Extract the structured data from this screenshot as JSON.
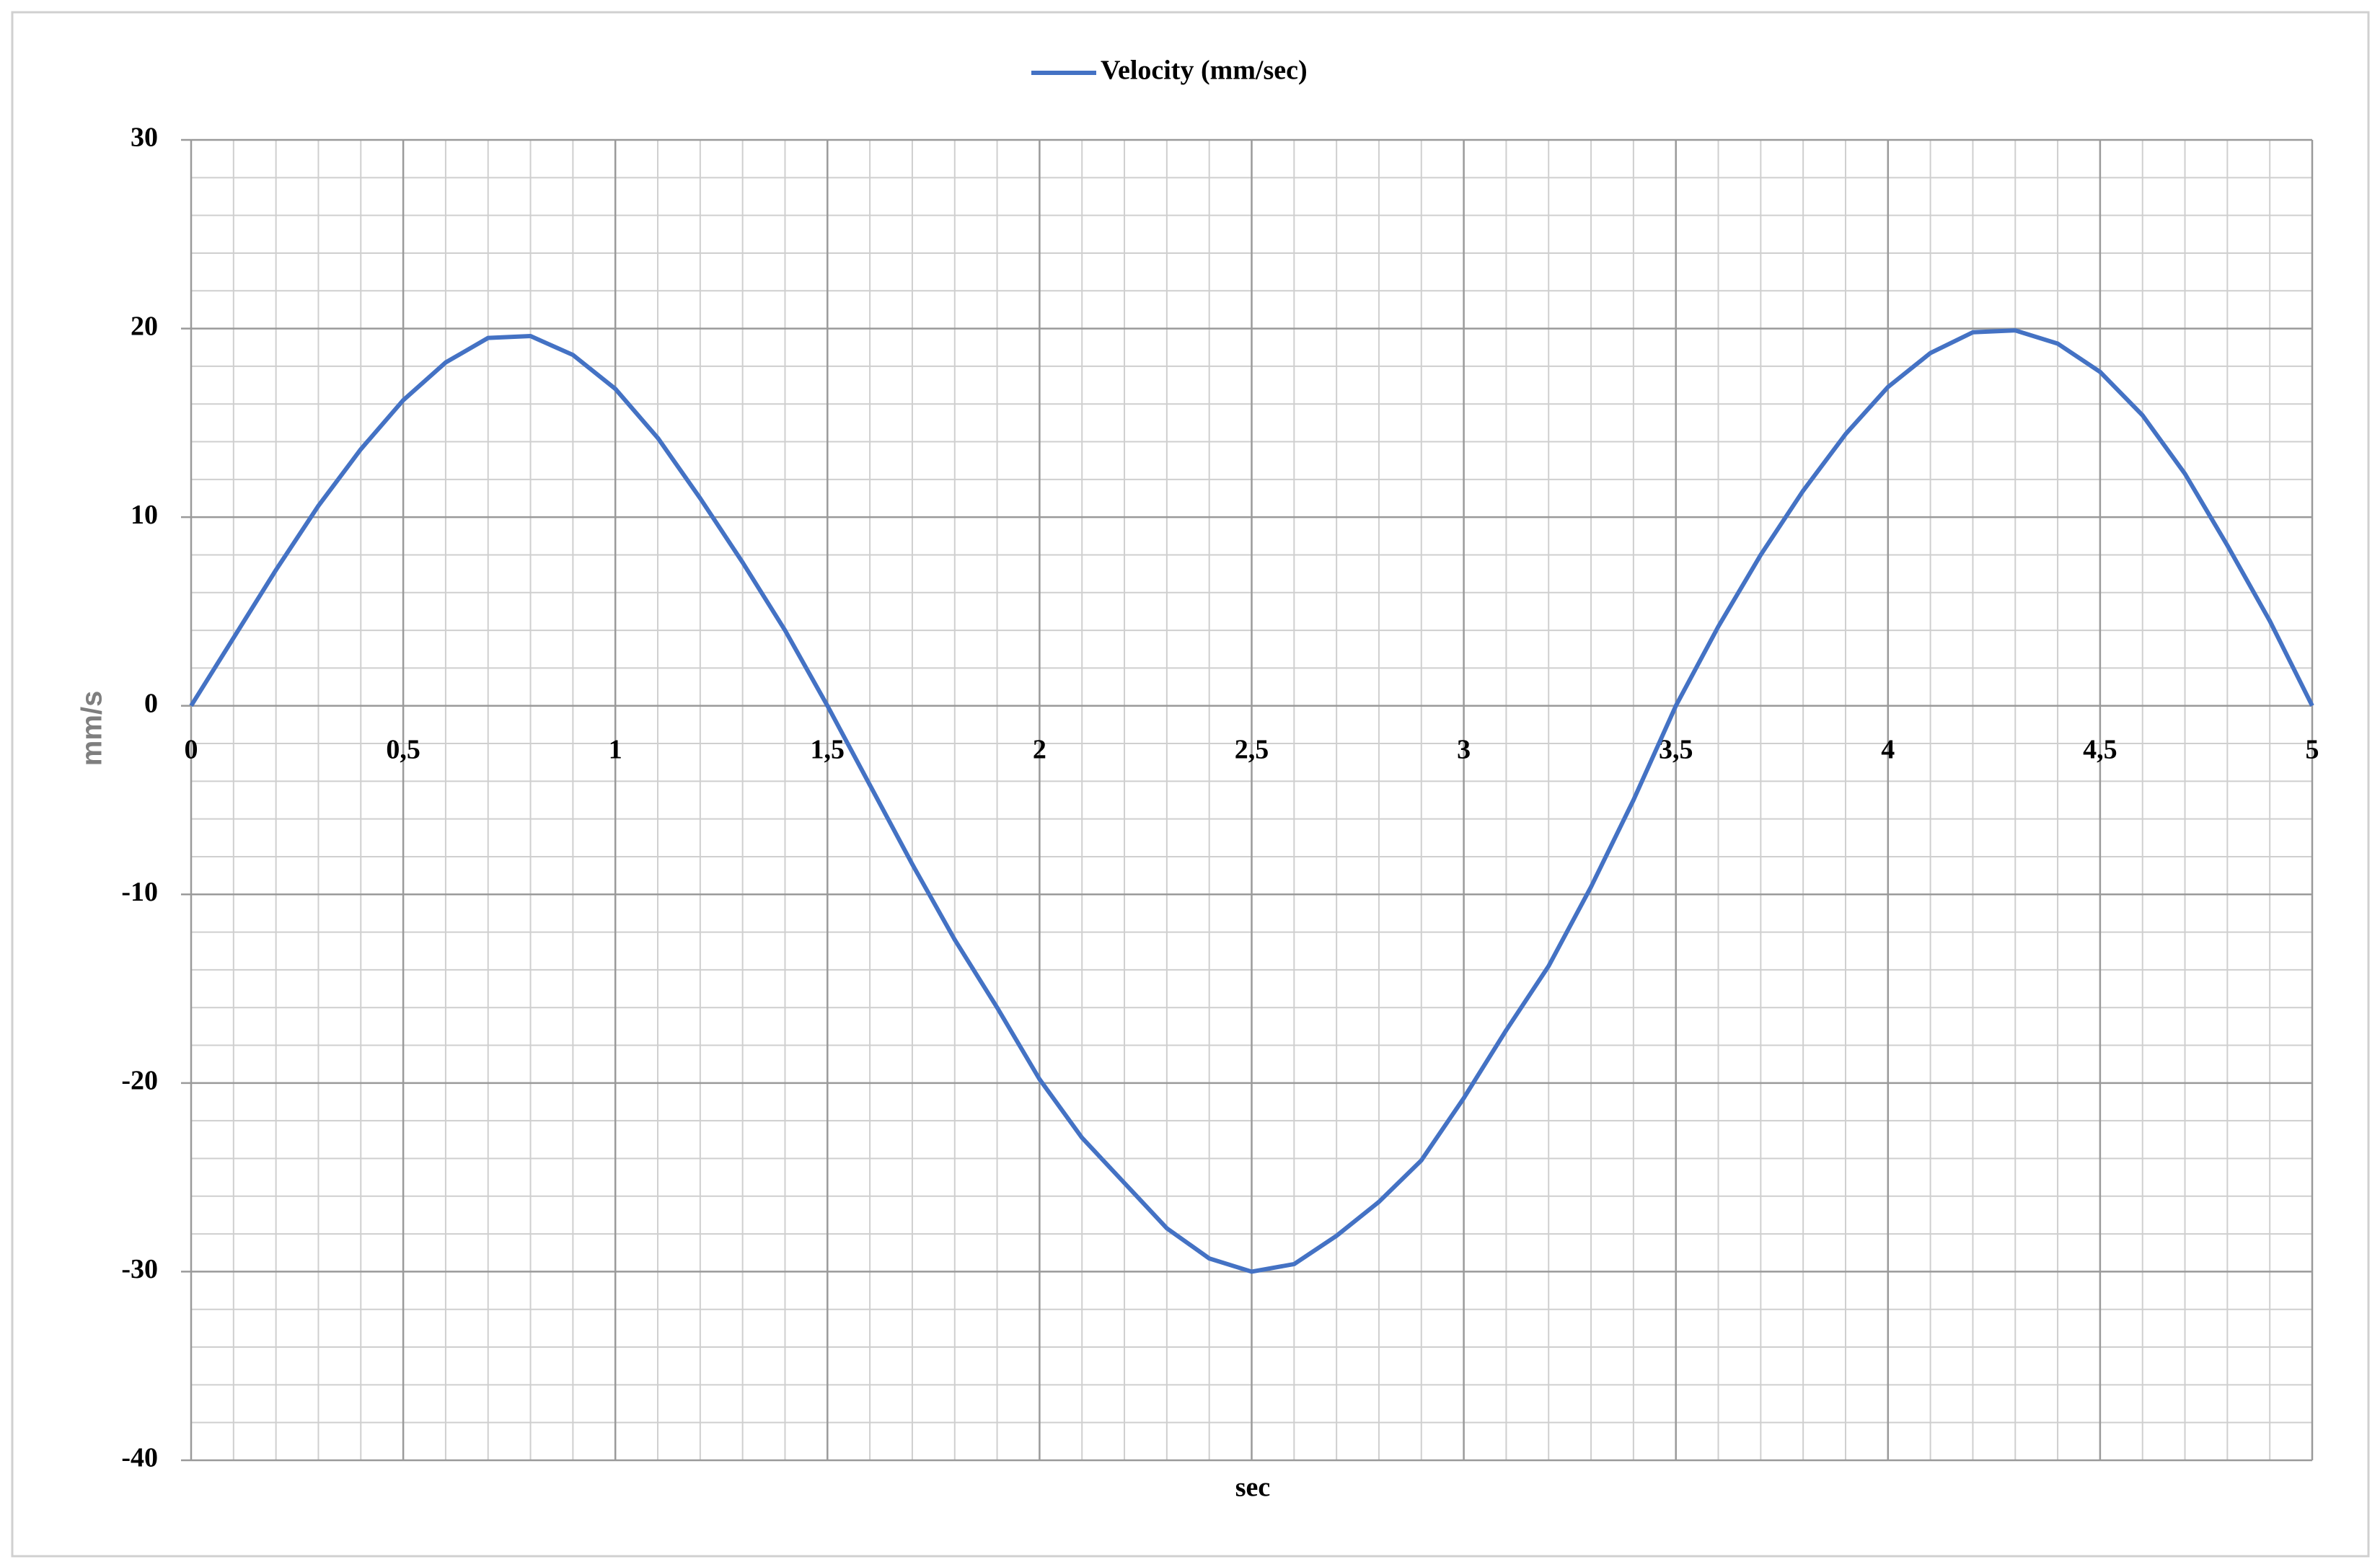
{
  "chart_data": {
    "type": "line",
    "x_label": "sec",
    "y_label": "mm/s",
    "x": [
      0,
      0.1,
      0.2,
      0.3,
      0.4,
      0.5,
      0.6,
      0.7,
      0.8,
      0.9,
      1.0,
      1.1,
      1.2,
      1.3,
      1.4,
      1.5,
      1.6,
      1.7,
      1.8,
      1.9,
      2.0,
      2.1,
      2.2,
      2.3,
      2.4,
      2.5,
      2.6,
      2.7,
      2.8,
      2.9,
      3.0,
      3.1,
      3.2,
      3.3,
      3.4,
      3.5,
      3.6,
      3.7,
      3.8,
      3.9,
      4.0,
      4.1,
      4.2,
      4.3,
      4.4,
      4.5,
      4.6,
      4.7,
      4.8,
      4.9,
      5.0
    ],
    "series": [
      {
        "name": "Velocity (mm/sec)",
        "color": "#4472c4",
        "values": [
          0,
          3.6,
          7.2,
          10.6,
          13.6,
          16.2,
          18.2,
          19.5,
          19.6,
          18.6,
          16.8,
          14.2,
          11.0,
          7.6,
          4.0,
          0,
          -4.2,
          -8.4,
          -12.4,
          -16.0,
          -19.8,
          -22.9,
          -25.3,
          -27.7,
          -29.3,
          -30.0,
          -29.6,
          -28.1,
          -26.3,
          -24.1,
          -20.8,
          -17.2,
          -13.8,
          -9.6,
          -5.0,
          0,
          4.2,
          8.0,
          11.4,
          14.4,
          16.9,
          18.7,
          19.8,
          19.9,
          19.2,
          17.7,
          15.4,
          12.3,
          8.5,
          4.5,
          0
        ]
      }
    ],
    "xlim": [
      0,
      5
    ],
    "xticks": [
      0,
      {
        "value": 0.5,
        "label": "0,5"
      },
      1,
      {
        "value": 1.5,
        "label": "1,5"
      },
      2,
      {
        "value": 2.5,
        "label": "2,5"
      },
      3,
      {
        "value": 3.5,
        "label": "3,5"
      },
      4,
      {
        "value": 4.5,
        "label": "4,5"
      },
      5
    ],
    "ylim": [
      -40,
      30
    ],
    "yticks": [
      -40,
      -30,
      -20,
      -10,
      0,
      10,
      20,
      30
    ],
    "grid": true,
    "minor_grid": {
      "x": 0.1,
      "y": 2
    },
    "legend": "top"
  }
}
